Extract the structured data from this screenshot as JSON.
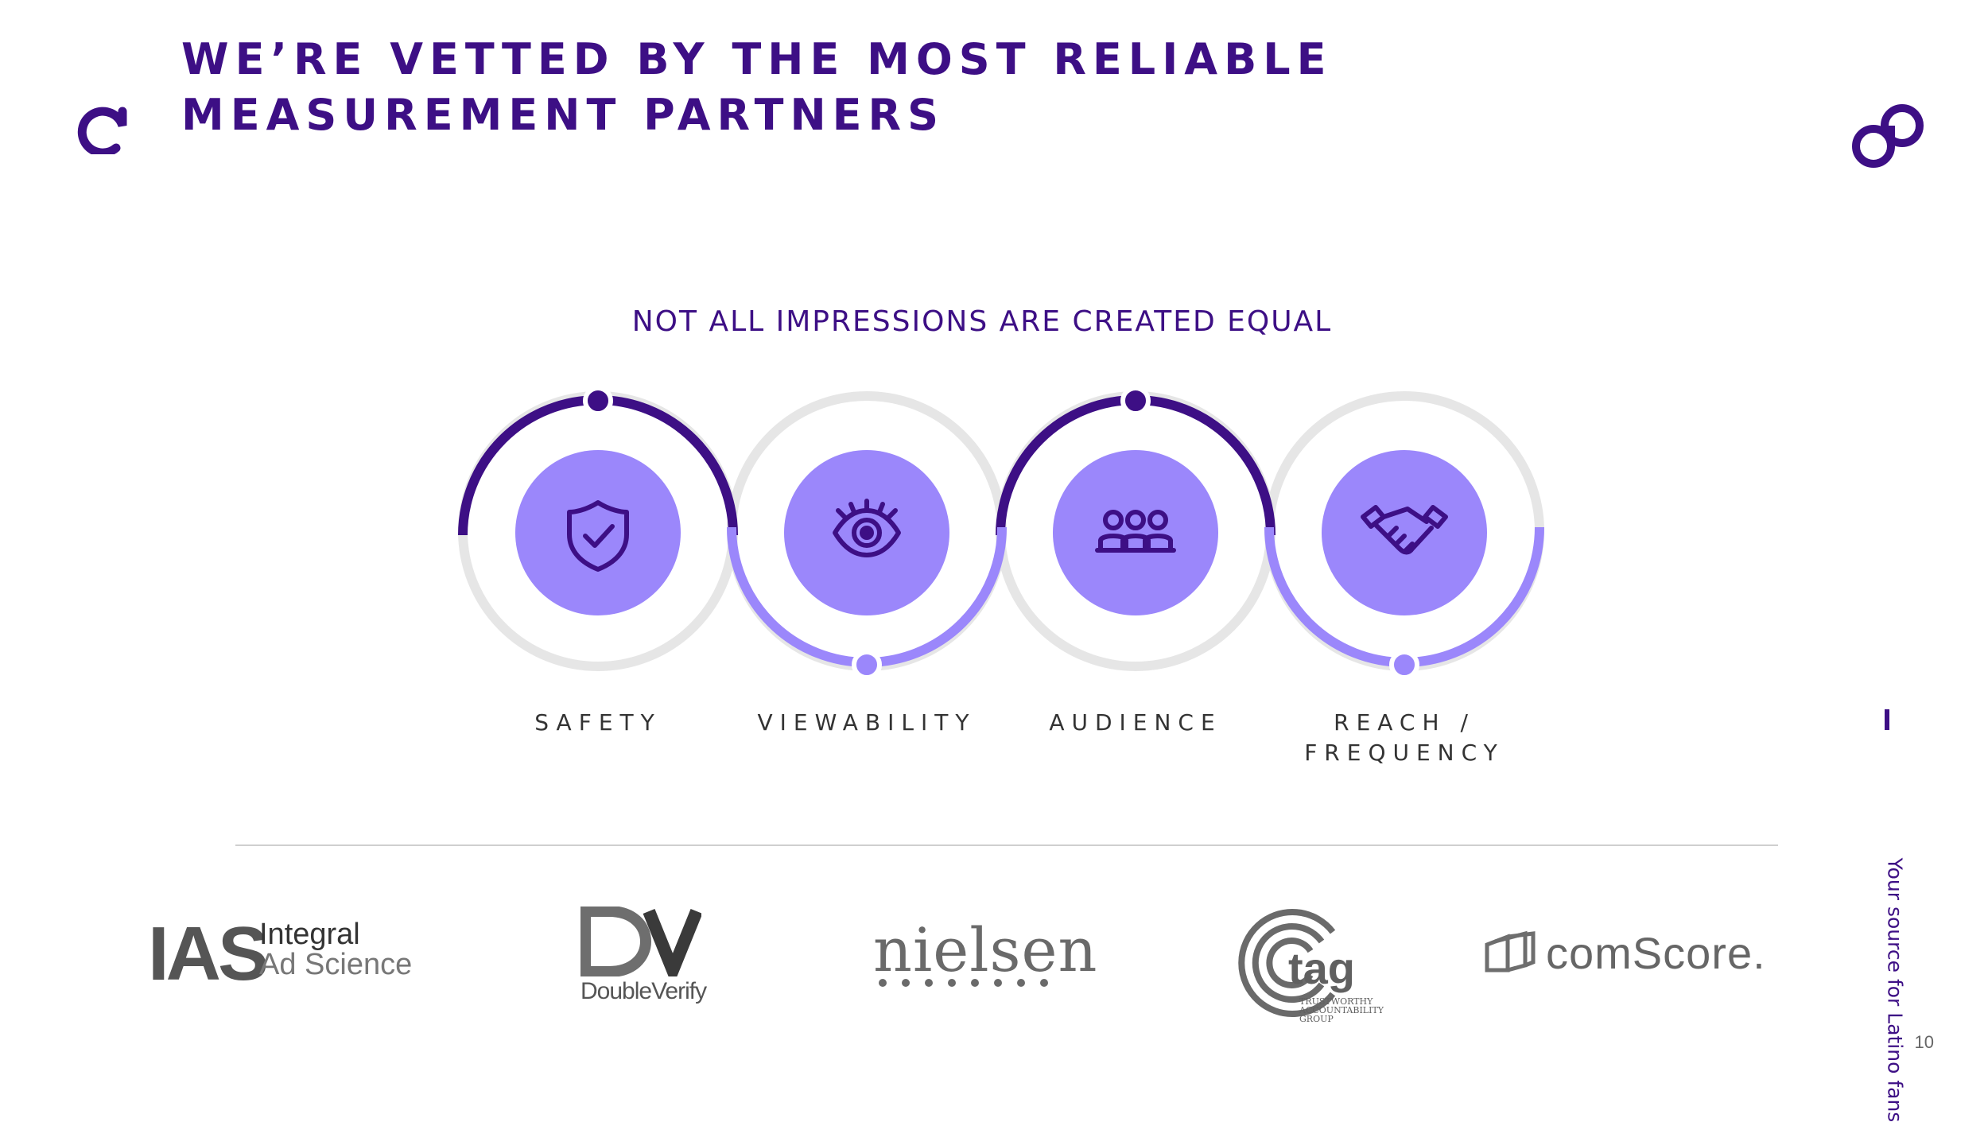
{
  "header": {
    "title_line1": "WE’RE VETTED BY THE MOST RELIABLE",
    "title_line2": "MEASUREMENT PARTNERS"
  },
  "section": {
    "subtitle": "NOT ALL IMPRESSIONS ARE CREATED EQUAL"
  },
  "steps": [
    {
      "label": "SAFETY",
      "icon": "shield-check-icon"
    },
    {
      "label": "VIEWABILITY",
      "icon": "eye-icon"
    },
    {
      "label": "AUDIENCE",
      "icon": "people-group-icon"
    },
    {
      "label_line1": "REACH /",
      "label_line2": "FREQUENCY",
      "icon": "handshake-icon"
    }
  ],
  "partners": {
    "ias_mark": "IAS",
    "ias_line1": "Integral",
    "ias_line2": "Ad Science",
    "doubleverify": "DoubleVerify",
    "nielsen": "nielsen",
    "tag": "tag",
    "tag_sub1": "TRUSTWORTHY",
    "tag_sub2": "ACCOUNTABILITY",
    "tag_sub3": "GROUP",
    "comscore": "comScore."
  },
  "sidebar": {
    "tagline": "Your source for Latino fans"
  },
  "footer": {
    "page_number": "10"
  },
  "colors": {
    "brand_dark": "#3d0f85",
    "brand_light": "#9b87fb",
    "ring_grey": "#e6e6e6"
  }
}
